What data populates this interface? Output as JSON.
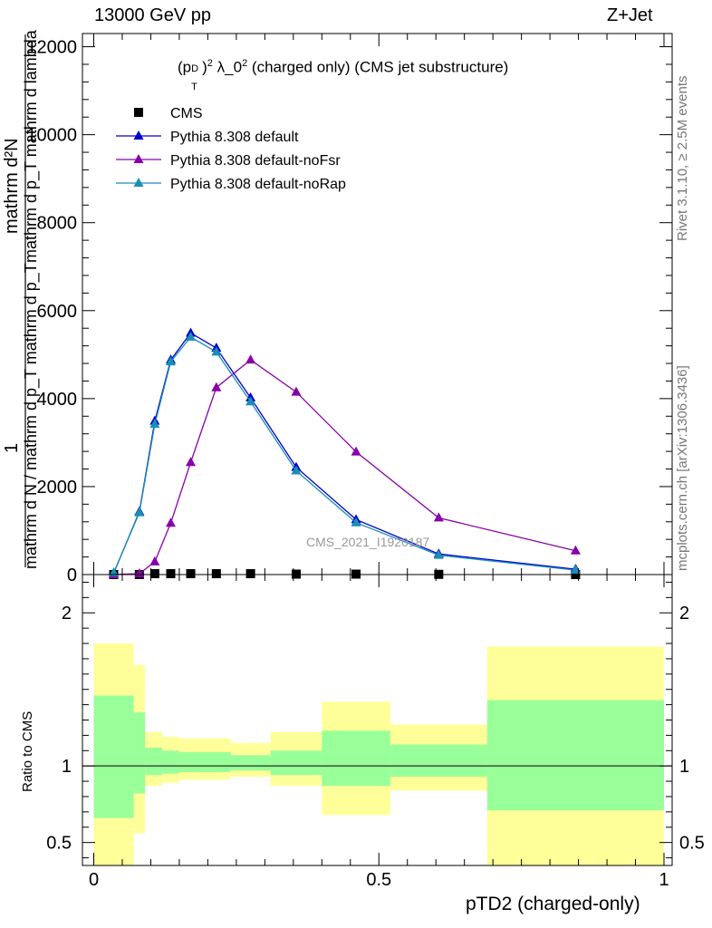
{
  "header": {
    "left": "13000 GeV pp",
    "right": "Z+Jet"
  },
  "side": {
    "rivet": "Rivet 3.1.10, ≥ 2.5M events",
    "mcplots": "mcplots.cern.ch [arXiv:1306.3436]"
  },
  "chart_data": {
    "type": "line",
    "title": "(p_T^D)^2 λ_0^2 (charged only) (CMS jet substructure)",
    "title_parts": {
      "a": "(p",
      "sup1": "D",
      "sub1": "T",
      "b": ")",
      "sup2": "2",
      "c": " λ_0",
      "sup3": "2",
      "d": " (charged only) (CMS jet substructure)"
    },
    "xlabel": "pTD2 (charged-only)",
    "ylabel_top": "1",
    "ylabel_num": "mathrm d²N",
    "ylabel_num_sub": "mathrm d p_T mathrm d lambda",
    "ylabel_den": "mathrm d N / mathrm d p_T mathrm d p_T",
    "watermark": "CMS_2021_I1920187",
    "xlim": [
      0,
      1
    ],
    "ylim": [
      0,
      12300
    ],
    "yticks": [
      0,
      2000,
      4000,
      6000,
      8000,
      10000,
      12000
    ],
    "yticklabels": [
      "0",
      "2000",
      "4000",
      "6000",
      "8000",
      "10000",
      "12000"
    ],
    "xticks": [
      0,
      0.5,
      1
    ],
    "xticklabels": [
      "0",
      "0.5",
      "1"
    ],
    "legend_position": "top-left",
    "series": [
      {
        "name": "CMS",
        "color": "#000000",
        "marker": "square",
        "x": [
          0.035,
          0.08,
          0.107,
          0.135,
          0.17,
          0.215,
          0.275,
          0.355,
          0.46,
          0.605,
          0.845
        ],
        "y": [
          0,
          0,
          20,
          20,
          20,
          20,
          20,
          10,
          10,
          5,
          0
        ]
      },
      {
        "name": "Pythia 8.308 default",
        "color": "#0000cc",
        "marker": "triangle",
        "x": [
          0.035,
          0.08,
          0.107,
          0.135,
          0.17,
          0.215,
          0.275,
          0.355,
          0.46,
          0.605,
          0.845
        ],
        "y": [
          30,
          1430,
          3490,
          4880,
          5490,
          5150,
          4020,
          2440,
          1250,
          470,
          120
        ]
      },
      {
        "name": "Pythia 8.308 default-noFsr",
        "color": "#8800aa",
        "marker": "triangle",
        "x": [
          0.035,
          0.08,
          0.107,
          0.135,
          0.17,
          0.215,
          0.275,
          0.355,
          0.46,
          0.605,
          0.845
        ],
        "y": [
          0,
          20,
          290,
          1170,
          2550,
          4250,
          4880,
          4150,
          2790,
          1290,
          540
        ]
      },
      {
        "name": "Pythia 8.308 default-noRap",
        "color": "#1a8fb5",
        "marker": "triangle",
        "x": [
          0.035,
          0.08,
          0.107,
          0.135,
          0.17,
          0.215,
          0.275,
          0.355,
          0.46,
          0.605,
          0.845
        ],
        "y": [
          40,
          1410,
          3420,
          4840,
          5400,
          5060,
          3930,
          2360,
          1180,
          440,
          100
        ]
      }
    ],
    "ratio": {
      "ylabel": "Ratio to CMS",
      "ylim": [
        0.35,
        2.25
      ],
      "yticks": [
        0.5,
        1,
        2
      ],
      "yticklabels": [
        "0.5",
        "1",
        "2"
      ],
      "bands": [
        {
          "x0": 0.0,
          "x1": 0.07,
          "yellow": [
            0.35,
            1.8
          ],
          "green": [
            0.66,
            1.46
          ]
        },
        {
          "x0": 0.07,
          "x1": 0.09,
          "yellow": [
            0.56,
            1.66
          ],
          "green": [
            0.82,
            1.35
          ]
        },
        {
          "x0": 0.09,
          "x1": 0.12,
          "yellow": [
            0.87,
            1.22
          ],
          "green": [
            0.94,
            1.12
          ]
        },
        {
          "x0": 0.12,
          "x1": 0.15,
          "yellow": [
            0.89,
            1.19
          ],
          "green": [
            0.95,
            1.1
          ]
        },
        {
          "x0": 0.15,
          "x1": 0.24,
          "yellow": [
            0.91,
            1.18
          ],
          "green": [
            0.96,
            1.09
          ]
        },
        {
          "x0": 0.24,
          "x1": 0.31,
          "yellow": [
            0.93,
            1.15
          ],
          "green": [
            0.97,
            1.07
          ]
        },
        {
          "x0": 0.31,
          "x1": 0.4,
          "yellow": [
            0.87,
            1.22
          ],
          "green": [
            0.94,
            1.1
          ]
        },
        {
          "x0": 0.4,
          "x1": 0.52,
          "yellow": [
            0.68,
            1.42
          ],
          "green": [
            0.87,
            1.23
          ]
        },
        {
          "x0": 0.52,
          "x1": 0.69,
          "yellow": [
            0.84,
            1.27
          ],
          "green": [
            0.93,
            1.14
          ]
        },
        {
          "x0": 0.69,
          "x1": 1.0,
          "yellow": [
            0.35,
            1.78
          ],
          "green": [
            0.71,
            1.43
          ]
        }
      ]
    }
  }
}
